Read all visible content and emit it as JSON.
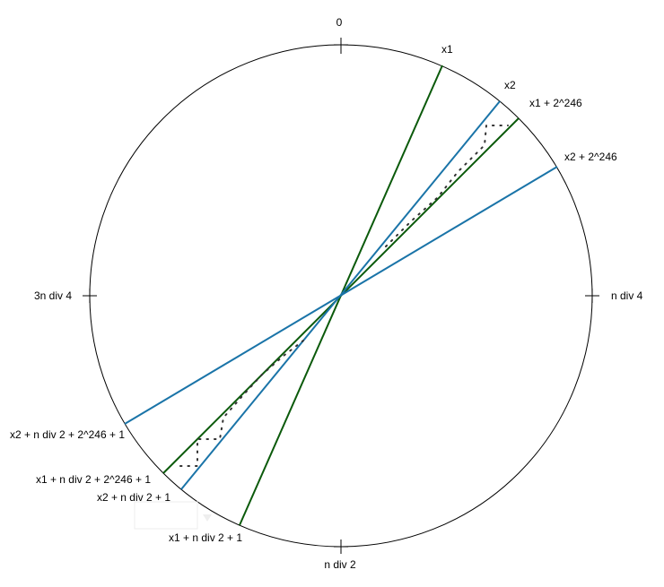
{
  "diagram": {
    "colors": {
      "circle": "#000000",
      "green_line": "#0b5a0b",
      "blue_line": "#1a74a8",
      "dots": "#333333"
    },
    "tick_labels": {
      "top": "0",
      "right": "n div 4",
      "bottom": "n div 2",
      "left": "3n div 4"
    },
    "line_labels": {
      "x1": "x1",
      "x2": "x2",
      "x1_plus": "x1 + 2^246",
      "x2_plus": "x2 + 2^246",
      "x2_opp_plus": "x2 + n div 2 + 2^246 + 1",
      "x1_opp_plus": "x1 + n div 2 + 2^246 + 1",
      "x2_opp": "x2 + n div 2 + 1",
      "x1_opp": "x1 + n div 2 + 1"
    }
  }
}
